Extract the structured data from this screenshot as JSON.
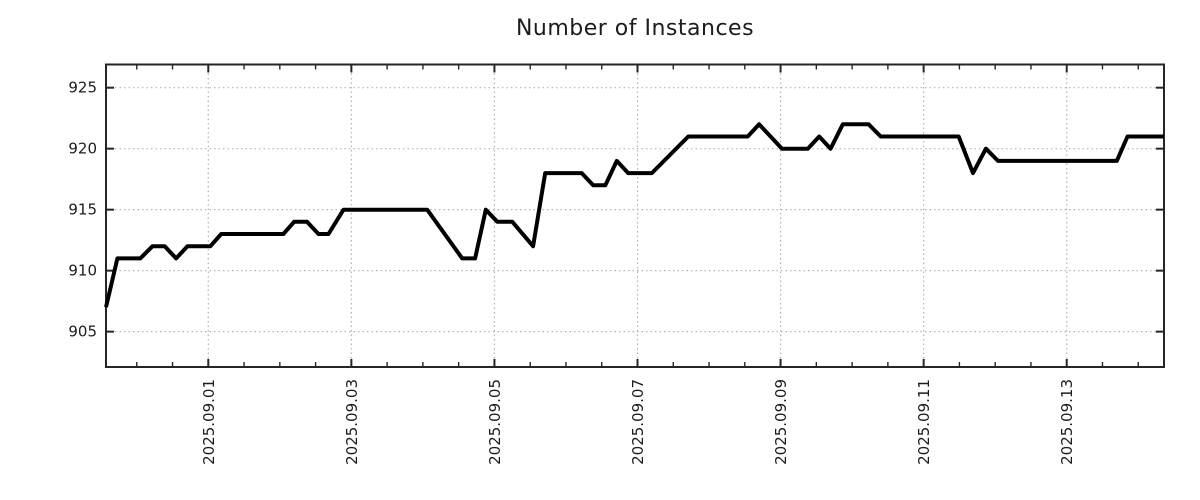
{
  "chart_data": {
    "type": "line",
    "title": "Number of Instances",
    "xlabel": "",
    "ylabel": "",
    "legend": "none",
    "grid": "dotted",
    "colors": {
      "line": "#000000",
      "grid": "#b3b3b3",
      "border": "#262626",
      "text": "#1c1c1c",
      "background": "#ffffff"
    },
    "y_ticks": [
      905,
      910,
      915,
      920,
      925
    ],
    "ylim": [
      902.1,
      926.9
    ],
    "x_unit": "days relative to 2025.09.01",
    "xlim_days": [
      -1.43,
      13.36
    ],
    "x_major_ticks": [
      {
        "day": 0,
        "label": "2025.09.01"
      },
      {
        "day": 2,
        "label": "2025.09.03"
      },
      {
        "day": 4,
        "label": "2025.09.05"
      },
      {
        "day": 6,
        "label": "2025.09.07"
      },
      {
        "day": 8,
        "label": "2025.09.09"
      },
      {
        "day": 10,
        "label": "2025.09.11"
      },
      {
        "day": 12,
        "label": "2025.09.13"
      }
    ],
    "x_minor_tick_interval_days": 0.5,
    "points": [
      [
        -1.43,
        907
      ],
      [
        -1.27,
        911
      ],
      [
        -0.95,
        911
      ],
      [
        -0.78,
        912
      ],
      [
        -0.61,
        912
      ],
      [
        -0.45,
        911
      ],
      [
        -0.29,
        912
      ],
      [
        0.03,
        912
      ],
      [
        0.18,
        913
      ],
      [
        1.05,
        913
      ],
      [
        1.2,
        914
      ],
      [
        1.38,
        914
      ],
      [
        1.54,
        913
      ],
      [
        1.68,
        913
      ],
      [
        1.89,
        915
      ],
      [
        3.06,
        915
      ],
      [
        3.55,
        911
      ],
      [
        3.73,
        911
      ],
      [
        3.88,
        915
      ],
      [
        4.04,
        914
      ],
      [
        4.25,
        914
      ],
      [
        4.54,
        912
      ],
      [
        4.71,
        918
      ],
      [
        5.22,
        918
      ],
      [
        5.38,
        917
      ],
      [
        5.55,
        917
      ],
      [
        5.71,
        919
      ],
      [
        5.87,
        918
      ],
      [
        6.2,
        918
      ],
      [
        6.71,
        921
      ],
      [
        7.54,
        921
      ],
      [
        7.7,
        922
      ],
      [
        8.02,
        920
      ],
      [
        8.38,
        920
      ],
      [
        8.54,
        921
      ],
      [
        8.7,
        920
      ],
      [
        8.87,
        922
      ],
      [
        9.23,
        922
      ],
      [
        9.4,
        921
      ],
      [
        10.49,
        921
      ],
      [
        10.69,
        918
      ],
      [
        10.87,
        920
      ],
      [
        11.04,
        919
      ],
      [
        12.7,
        919
      ],
      [
        12.85,
        921
      ],
      [
        13.36,
        921
      ]
    ]
  }
}
